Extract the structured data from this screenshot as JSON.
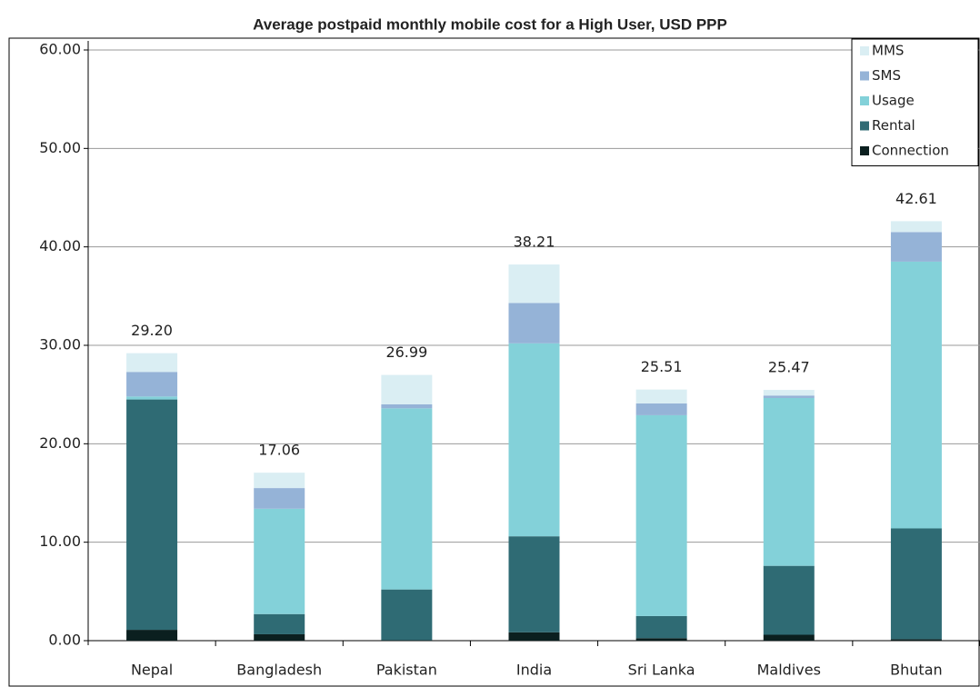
{
  "chart_data": {
    "type": "stacked_bar",
    "title": "Average postpaid monthly mobile cost for a High User, USD PPP",
    "categories": [
      "Nepal",
      "Bangladesh",
      "Pakistan",
      "India",
      "Sri Lanka",
      "Maldives",
      "Bhutan"
    ],
    "series": [
      {
        "name": "Connection",
        "color": "#0b1f1f",
        "values": [
          1.1,
          0.65,
          0.05,
          0.85,
          0.25,
          0.6,
          0.15
        ]
      },
      {
        "name": "Rental",
        "color": "#2f6b74",
        "values": [
          23.4,
          2.05,
          5.15,
          9.75,
          2.25,
          7.0,
          11.25
        ]
      },
      {
        "name": "Usage",
        "color": "#83d1d9",
        "values": [
          0.3,
          10.7,
          18.4,
          19.6,
          20.4,
          17.05,
          27.1
        ]
      },
      {
        "name": "SMS",
        "color": "#95b3d7",
        "values": [
          2.5,
          2.1,
          0.4,
          4.1,
          1.2,
          0.25,
          3.0
        ]
      },
      {
        "name": "MMS",
        "color": "#daeef3",
        "values": [
          1.9,
          1.56,
          2.99,
          3.91,
          1.41,
          0.57,
          1.11
        ]
      }
    ],
    "totals": [
      {
        "value": 29.2,
        "label": "29.20"
      },
      {
        "value": 17.06,
        "label": "17.06"
      },
      {
        "value": 26.99,
        "label": "26.99"
      },
      {
        "value": 38.21,
        "label": "38.21"
      },
      {
        "value": 25.51,
        "label": "25.51"
      },
      {
        "value": 25.47,
        "label": "25.47"
      },
      {
        "value": 42.61,
        "label": "42.61"
      }
    ],
    "ylim": [
      0,
      60
    ],
    "yticks": [
      {
        "value": 0,
        "label": "0.00"
      },
      {
        "value": 10,
        "label": "10.00"
      },
      {
        "value": 20,
        "label": "20.00"
      },
      {
        "value": 30,
        "label": "30.00"
      },
      {
        "value": 40,
        "label": "40.00"
      },
      {
        "value": 50,
        "label": "50.00"
      },
      {
        "value": 60,
        "label": "60.00"
      }
    ],
    "grid": true,
    "legend": "top-right"
  }
}
